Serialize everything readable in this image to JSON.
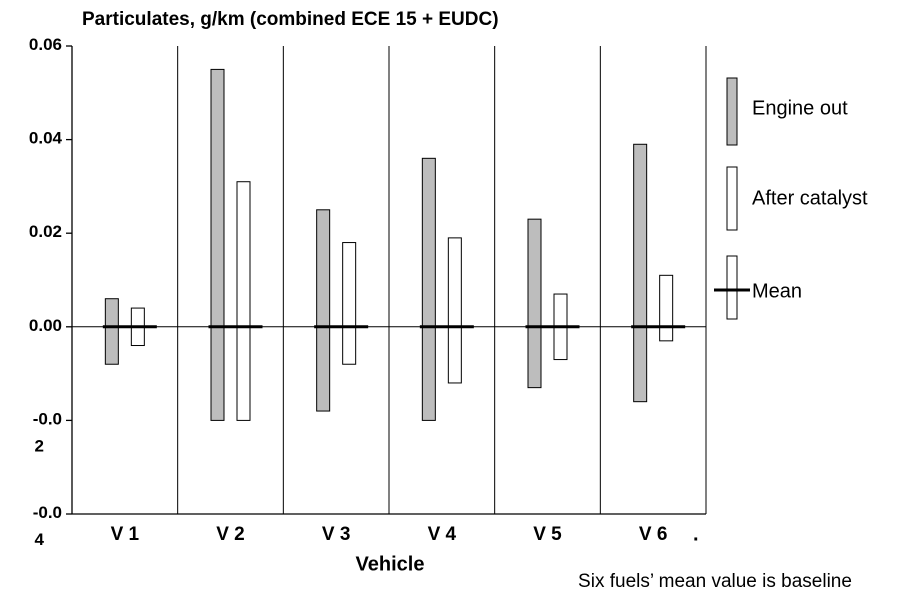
{
  "chart_data": {
    "type": "range_bar",
    "title": "Particulates, g/km  (combined ECE 15 + EUDC)",
    "x_label": "Vehicle",
    "note": "Six fuels’ mean value is baseline",
    "mark": ".",
    "categories": [
      "V 1",
      "V 2",
      "V 3",
      "V 4",
      "V 5",
      "V 6"
    ],
    "ylim": [
      -0.04,
      0.06
    ],
    "yticks": [
      {
        "value": 0.06,
        "label": "0.06"
      },
      {
        "value": 0.04,
        "label": "0.04"
      },
      {
        "value": 0.02,
        "label": "0.02"
      },
      {
        "value": 0.0,
        "label": "0.00"
      },
      {
        "value": -0.02,
        "label": "-0.0\n2"
      },
      {
        "value": -0.04,
        "label": "-0.0\n4"
      }
    ],
    "series": [
      {
        "name": "Engine out",
        "color": "#bdbdbd",
        "high": [
          0.006,
          0.055,
          0.025,
          0.036,
          0.023,
          0.039
        ],
        "low": [
          -0.008,
          -0.02,
          -0.018,
          -0.02,
          -0.013,
          -0.016
        ]
      },
      {
        "name": "After catalyst",
        "color": "#ffffff",
        "high": [
          0.004,
          0.031,
          0.018,
          0.019,
          0.007,
          0.011
        ],
        "low": [
          -0.004,
          -0.02,
          -0.008,
          -0.012,
          -0.007,
          -0.003
        ]
      },
      {
        "name": "Mean",
        "color": "#000000",
        "values": [
          0,
          0,
          0,
          0,
          0,
          0
        ]
      }
    ]
  }
}
